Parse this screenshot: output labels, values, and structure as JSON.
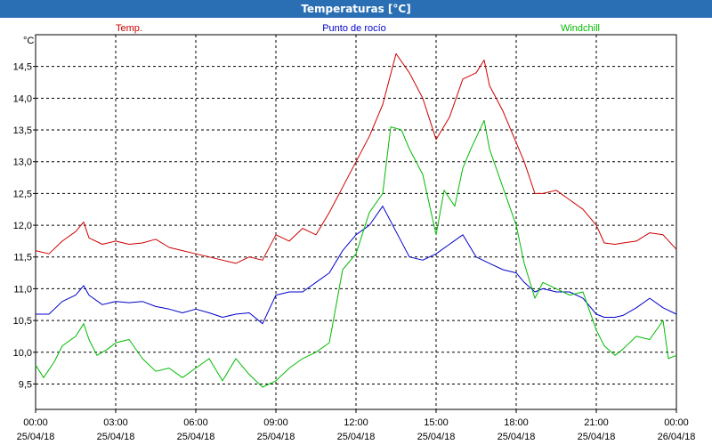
{
  "window": {
    "title": "Temperaturas [°C]"
  },
  "chart_data": {
    "type": "line",
    "title": "Temperaturas [°C]",
    "ylabel": "°C",
    "xlabel": "",
    "ylim": [
      9.1,
      15.0
    ],
    "xlim": [
      0,
      24
    ],
    "grid": true,
    "legend_placement": "top",
    "y_ticks": [
      "9,5",
      "10,0",
      "10,5",
      "11,0",
      "11,5",
      "12,0",
      "12,5",
      "13,0",
      "13,5",
      "14,0",
      "14,5"
    ],
    "x_ticks": [
      {
        "time": "00:00",
        "date": "25/04/18"
      },
      {
        "time": "03:00",
        "date": "25/04/18"
      },
      {
        "time": "06:00",
        "date": "25/04/18"
      },
      {
        "time": "09:00",
        "date": "25/04/18"
      },
      {
        "time": "12:00",
        "date": "25/04/18"
      },
      {
        "time": "15:00",
        "date": "25/04/18"
      },
      {
        "time": "18:00",
        "date": "25/04/18"
      },
      {
        "time": "21:00",
        "date": "25/04/18"
      },
      {
        "time": "00:00",
        "date": "26/04/18"
      }
    ],
    "series": [
      {
        "name": "Temp.",
        "color": "#cc0000",
        "points": [
          [
            0,
            11.6
          ],
          [
            0.5,
            11.55
          ],
          [
            1,
            11.75
          ],
          [
            1.5,
            11.9
          ],
          [
            1.8,
            12.05
          ],
          [
            2,
            11.8
          ],
          [
            2.5,
            11.7
          ],
          [
            3,
            11.75
          ],
          [
            3.5,
            11.7
          ],
          [
            4,
            11.72
          ],
          [
            4.5,
            11.78
          ],
          [
            5,
            11.65
          ],
          [
            5.5,
            11.6
          ],
          [
            6,
            11.55
          ],
          [
            6.5,
            11.5
          ],
          [
            7,
            11.45
          ],
          [
            7.5,
            11.4
          ],
          [
            8,
            11.5
          ],
          [
            8.5,
            11.45
          ],
          [
            9,
            11.85
          ],
          [
            9.5,
            11.75
          ],
          [
            10,
            11.95
          ],
          [
            10.5,
            11.85
          ],
          [
            11,
            12.2
          ],
          [
            11.5,
            12.6
          ],
          [
            12,
            13.0
          ],
          [
            12.5,
            13.4
          ],
          [
            13,
            13.9
          ],
          [
            13.5,
            14.7
          ],
          [
            14,
            14.4
          ],
          [
            14.5,
            14.0
          ],
          [
            15,
            13.35
          ],
          [
            15.5,
            13.7
          ],
          [
            16,
            14.3
          ],
          [
            16.5,
            14.4
          ],
          [
            16.8,
            14.6
          ],
          [
            17,
            14.2
          ],
          [
            17.5,
            13.8
          ],
          [
            18,
            13.3
          ],
          [
            18.3,
            13.0
          ],
          [
            18.7,
            12.5
          ],
          [
            19,
            12.5
          ],
          [
            19.5,
            12.55
          ],
          [
            20,
            12.4
          ],
          [
            20.5,
            12.25
          ],
          [
            21,
            12.0
          ],
          [
            21.3,
            11.72
          ],
          [
            21.7,
            11.7
          ],
          [
            22,
            11.72
          ],
          [
            22.5,
            11.75
          ],
          [
            23,
            11.88
          ],
          [
            23.5,
            11.85
          ],
          [
            24,
            11.62
          ]
        ]
      },
      {
        "name": "Punto de rocío",
        "color": "#0000cc",
        "points": [
          [
            0,
            10.6
          ],
          [
            0.5,
            10.6
          ],
          [
            1,
            10.8
          ],
          [
            1.5,
            10.9
          ],
          [
            1.8,
            11.05
          ],
          [
            2,
            10.9
          ],
          [
            2.5,
            10.75
          ],
          [
            3,
            10.8
          ],
          [
            3.5,
            10.78
          ],
          [
            4,
            10.8
          ],
          [
            4.5,
            10.72
          ],
          [
            5,
            10.68
          ],
          [
            5.5,
            10.62
          ],
          [
            6,
            10.68
          ],
          [
            6.5,
            10.62
          ],
          [
            7,
            10.55
          ],
          [
            7.5,
            10.6
          ],
          [
            8,
            10.62
          ],
          [
            8.5,
            10.45
          ],
          [
            9,
            10.9
          ],
          [
            9.5,
            10.95
          ],
          [
            10,
            10.95
          ],
          [
            10.5,
            11.1
          ],
          [
            11,
            11.25
          ],
          [
            11.5,
            11.6
          ],
          [
            12,
            11.85
          ],
          [
            12.5,
            12.0
          ],
          [
            13,
            12.3
          ],
          [
            13.5,
            11.9
          ],
          [
            14,
            11.5
          ],
          [
            14.5,
            11.45
          ],
          [
            15,
            11.55
          ],
          [
            15.5,
            11.7
          ],
          [
            16,
            11.85
          ],
          [
            16.5,
            11.5
          ],
          [
            17,
            11.4
          ],
          [
            17.5,
            11.3
          ],
          [
            18,
            11.25
          ],
          [
            18.3,
            11.1
          ],
          [
            18.7,
            10.95
          ],
          [
            19,
            11.0
          ],
          [
            19.5,
            10.95
          ],
          [
            20,
            10.95
          ],
          [
            20.5,
            10.85
          ],
          [
            21,
            10.6
          ],
          [
            21.3,
            10.55
          ],
          [
            21.7,
            10.55
          ],
          [
            22,
            10.58
          ],
          [
            22.5,
            10.7
          ],
          [
            23,
            10.85
          ],
          [
            23.5,
            10.7
          ],
          [
            24,
            10.6
          ]
        ]
      },
      {
        "name": "Windchill",
        "color": "#00bb00",
        "points": [
          [
            0,
            9.8
          ],
          [
            0.3,
            9.6
          ],
          [
            0.7,
            9.85
          ],
          [
            1,
            10.1
          ],
          [
            1.5,
            10.25
          ],
          [
            1.8,
            10.45
          ],
          [
            2,
            10.2
          ],
          [
            2.3,
            9.95
          ],
          [
            2.7,
            10.05
          ],
          [
            3,
            10.15
          ],
          [
            3.5,
            10.2
          ],
          [
            4,
            9.9
          ],
          [
            4.5,
            9.7
          ],
          [
            5,
            9.75
          ],
          [
            5.5,
            9.6
          ],
          [
            6,
            9.75
          ],
          [
            6.5,
            9.9
          ],
          [
            7,
            9.55
          ],
          [
            7.5,
            9.9
          ],
          [
            8,
            9.65
          ],
          [
            8.5,
            9.45
          ],
          [
            9,
            9.55
          ],
          [
            9.5,
            9.75
          ],
          [
            10,
            9.9
          ],
          [
            10.5,
            10.0
          ],
          [
            11,
            10.15
          ],
          [
            11.5,
            11.3
          ],
          [
            12,
            11.55
          ],
          [
            12.5,
            12.2
          ],
          [
            13,
            12.5
          ],
          [
            13.3,
            13.55
          ],
          [
            13.7,
            13.5
          ],
          [
            14,
            13.2
          ],
          [
            14.5,
            12.8
          ],
          [
            15,
            11.85
          ],
          [
            15.3,
            12.55
          ],
          [
            15.7,
            12.3
          ],
          [
            16,
            12.9
          ],
          [
            16.3,
            13.2
          ],
          [
            16.8,
            13.65
          ],
          [
            17,
            13.2
          ],
          [
            17.5,
            12.6
          ],
          [
            18,
            12.0
          ],
          [
            18.3,
            11.4
          ],
          [
            18.7,
            10.85
          ],
          [
            19,
            11.1
          ],
          [
            19.5,
            11.0
          ],
          [
            20,
            10.9
          ],
          [
            20.5,
            10.95
          ],
          [
            21,
            10.35
          ],
          [
            21.3,
            10.1
          ],
          [
            21.7,
            9.95
          ],
          [
            22,
            10.05
          ],
          [
            22.5,
            10.25
          ],
          [
            23,
            10.2
          ],
          [
            23.5,
            10.5
          ],
          [
            23.7,
            9.9
          ],
          [
            24,
            9.95
          ]
        ]
      }
    ]
  }
}
